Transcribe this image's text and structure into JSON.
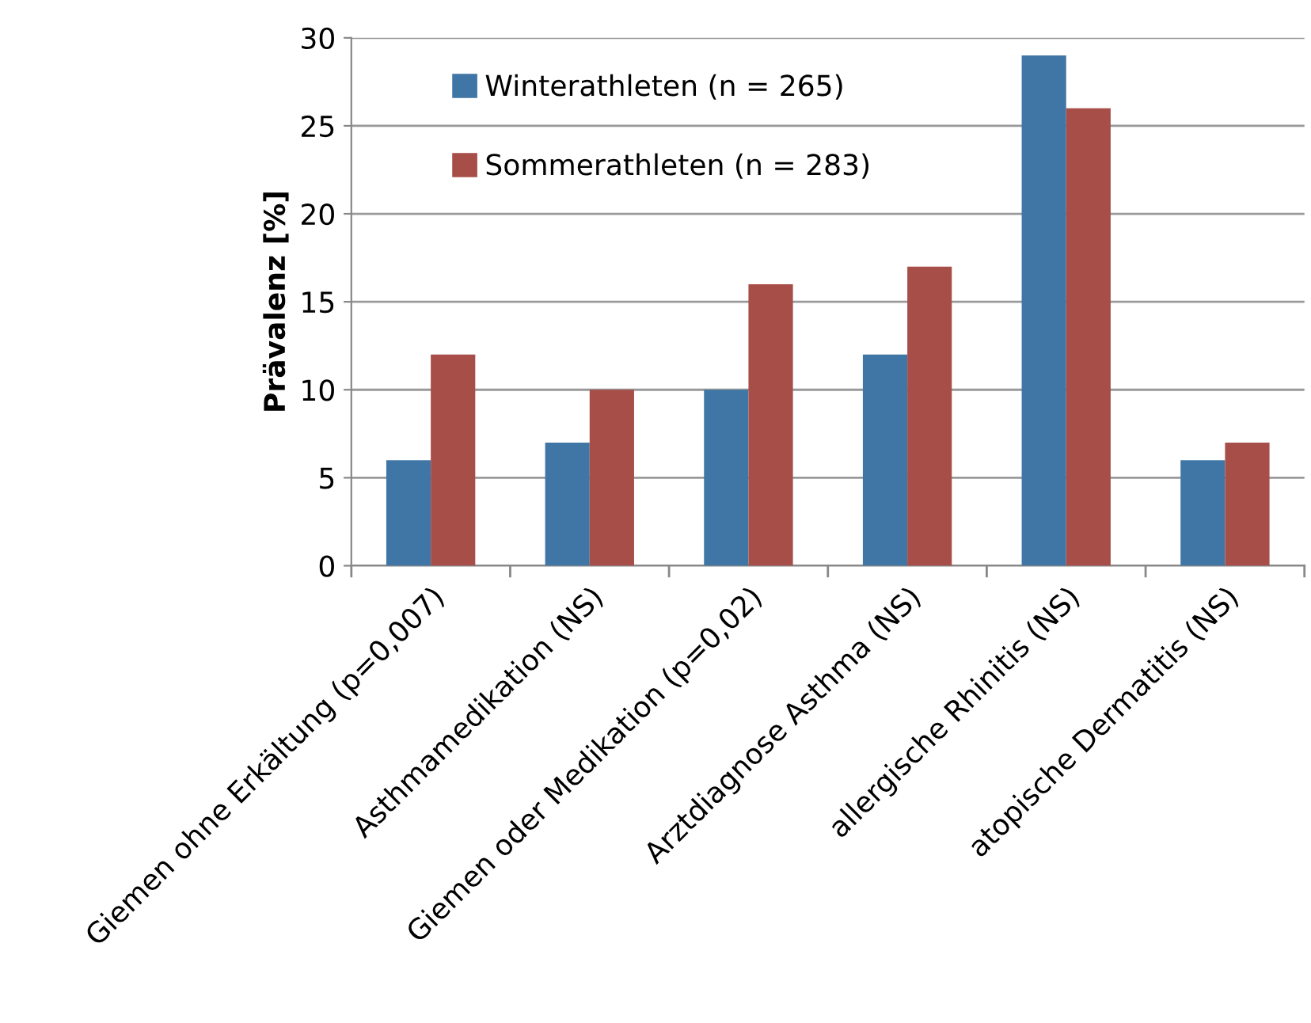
{
  "chart_data": {
    "type": "bar",
    "ylabel": "Prävalenz [%]",
    "categories": [
      "Giemen ohne Erkältung (p=0,007)",
      "Asthmamedikation (NS)",
      "Giemen oder Medikation (p=0,02)",
      "Arztdiagnose Asthma (NS)",
      "allergische Rhinitis (NS)",
      "atopische Dermatitis (NS)"
    ],
    "series": [
      {
        "name": "Winterathleten (n = 265)",
        "color": "#4076a6",
        "values": [
          6,
          7,
          10,
          12,
          29,
          6
        ]
      },
      {
        "name": "Sommerathleten (n = 283)",
        "color": "#a84e48",
        "values": [
          12,
          10,
          16,
          17,
          26,
          7
        ]
      }
    ],
    "ylim": [
      0,
      30
    ],
    "yticks": [
      0,
      5,
      10,
      15,
      20,
      25,
      30
    ],
    "grid": "y",
    "legend": "top left"
  }
}
